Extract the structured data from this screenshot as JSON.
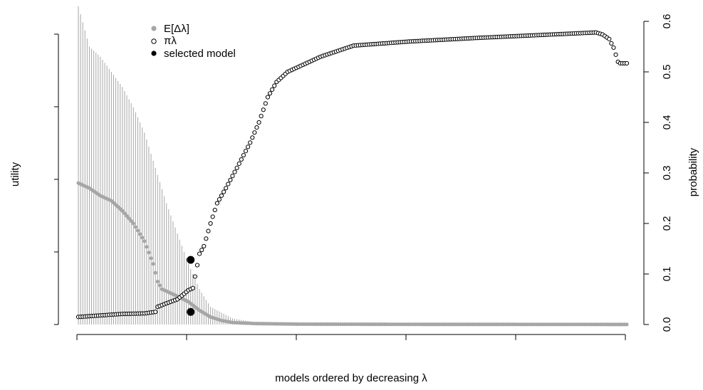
{
  "chart_data": {
    "type": "scatter",
    "xlabel": "models ordered by decreasing λ",
    "ylabel_left": "utility",
    "ylabel_right": "probability",
    "right_axis": {
      "ylim": [
        0,
        0.6
      ],
      "ticks": [
        "0.0",
        "0.1",
        "0.2",
        "0.3",
        "0.4",
        "0.5",
        "0.6"
      ]
    },
    "x_tick_count": 6,
    "n_models": 250,
    "legend": {
      "items": [
        {
          "label": "E[Δλ]",
          "marker": "filled",
          "color": "#a6a6a6"
        },
        {
          "label": "πλ",
          "marker": "open",
          "color": "#000000"
        },
        {
          "label": "selected model",
          "marker": "filled",
          "color": "#000000"
        }
      ],
      "position": "top-left"
    },
    "series": [
      {
        "name": "πλ",
        "marker": "open",
        "color": "#000000",
        "key_points": [
          [
            0,
            0.015
          ],
          [
            10,
            0.018
          ],
          [
            20,
            0.021
          ],
          [
            30,
            0.022
          ],
          [
            35,
            0.025
          ],
          [
            36,
            0.035
          ],
          [
            40,
            0.042
          ],
          [
            45,
            0.05
          ],
          [
            50,
            0.068
          ],
          [
            52,
            0.072
          ],
          [
            53,
            0.095
          ],
          [
            55,
            0.14
          ],
          [
            57,
            0.155
          ],
          [
            60,
            0.2
          ],
          [
            63,
            0.24
          ],
          [
            67,
            0.27
          ],
          [
            72,
            0.31
          ],
          [
            78,
            0.36
          ],
          [
            82,
            0.4
          ],
          [
            86,
            0.45
          ],
          [
            90,
            0.48
          ],
          [
            95,
            0.5
          ],
          [
            100,
            0.51
          ],
          [
            110,
            0.53
          ],
          [
            125,
            0.552
          ],
          [
            150,
            0.56
          ],
          [
            180,
            0.567
          ],
          [
            210,
            0.573
          ],
          [
            235,
            0.578
          ],
          [
            238,
            0.574
          ],
          [
            241,
            0.565
          ],
          [
            243,
            0.548
          ],
          [
            245,
            0.52
          ],
          [
            246,
            0.517
          ]
        ]
      },
      {
        "name": "E[Δλ]",
        "marker": "filled",
        "color": "#a6a6a6",
        "key_points": [
          [
            0,
            0.28
          ],
          [
            5,
            0.27
          ],
          [
            10,
            0.255
          ],
          [
            15,
            0.245
          ],
          [
            20,
            0.225
          ],
          [
            25,
            0.2
          ],
          [
            30,
            0.165
          ],
          [
            34,
            0.12
          ],
          [
            36,
            0.085
          ],
          [
            38,
            0.07
          ],
          [
            44,
            0.058
          ],
          [
            50,
            0.045
          ],
          [
            55,
            0.028
          ],
          [
            60,
            0.015
          ],
          [
            65,
            0.008
          ],
          [
            70,
            0.004
          ],
          [
            80,
            0.002
          ],
          [
            100,
            0.0008
          ],
          [
            150,
            0.0004
          ],
          [
            246,
            0.0002
          ]
        ]
      },
      {
        "name": "selected model",
        "marker": "filled",
        "color": "#000000",
        "points": [
          [
            51,
            0.128
          ],
          [
            51,
            0.025
          ]
        ]
      }
    ],
    "error_bars": {
      "color": "#a6a6a6",
      "upper_key_points": [
        [
          0,
          0.63
        ],
        [
          5,
          0.55
        ],
        [
          10,
          0.53
        ],
        [
          15,
          0.5
        ],
        [
          20,
          0.47
        ],
        [
          25,
          0.43
        ],
        [
          30,
          0.38
        ],
        [
          35,
          0.31
        ],
        [
          40,
          0.24
        ],
        [
          45,
          0.18
        ],
        [
          50,
          0.12
        ],
        [
          55,
          0.07
        ],
        [
          60,
          0.035
        ],
        [
          70,
          0.012
        ],
        [
          80,
          0.005
        ],
        [
          100,
          0.002
        ],
        [
          246,
          0.0004
        ]
      ],
      "lower_key_points": [
        [
          0,
          0.0
        ],
        [
          30,
          0.0
        ],
        [
          35,
          0.0
        ],
        [
          40,
          0.0
        ],
        [
          45,
          0.0
        ],
        [
          246,
          0.0
        ]
      ]
    }
  }
}
